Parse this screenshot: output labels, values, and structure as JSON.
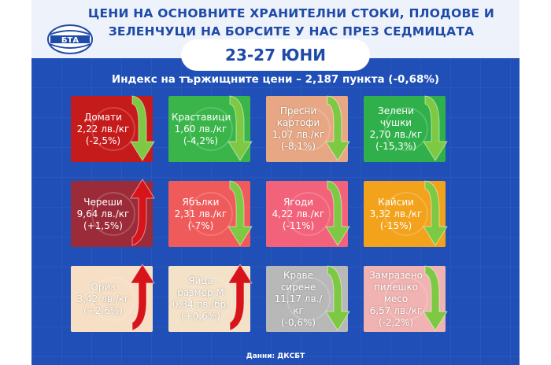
{
  "header": {
    "title_line1": "ЦЕНИ НА ОСНОВНИТЕ ХРАНИТЕЛНИ СТОКИ, ПЛОДОВЕ И",
    "title_line2": "ЗЕЛЕНЧУЦИ НА БОРСИТЕ У НАС ПРЕЗ СЕДМИЦАТА",
    "dates": "23-27 ЮНИ",
    "logo_text": "БТА"
  },
  "index_line": "Индекс на тържищните цени – 2,187 пункта (-0,68%)",
  "items": [
    {
      "name": "Домати",
      "price": "2,22 лв./кг",
      "change": "(-2,5%)",
      "trend": "down",
      "color": "#c61b1b",
      "icon": "tomato-icon"
    },
    {
      "name": "Краставици",
      "price": "1,60 лв./кг",
      "change": "(-4,2%)",
      "trend": "down",
      "color": "#39b54a",
      "icon": "cucumber-icon"
    },
    {
      "name": "Пресни картофи",
      "price": "1,07 лв./кг",
      "change": "(-8,1%)",
      "trend": "down",
      "color": "#e8a784",
      "icon": "potato-icon"
    },
    {
      "name": "Зелени чушки",
      "price": "2,70 лв./кг",
      "change": "(-15,3%)",
      "trend": "down",
      "color": "#2fb04a",
      "icon": "pepper-icon"
    },
    {
      "name": "Череши",
      "price": "9,64 лв./кг",
      "change": "(+1,5%)",
      "trend": "up",
      "color": "#9b2b38",
      "icon": "cherry-icon"
    },
    {
      "name": "Ябълки",
      "price": "2,31 лв./кг",
      "change": "(-7%)",
      "trend": "down",
      "color": "#ef5a5a",
      "icon": "apple-icon"
    },
    {
      "name": "Ягоди",
      "price": "4,22 лв./кг",
      "change": "(-11%)",
      "trend": "down",
      "color": "#f2627a",
      "icon": "strawberry-icon"
    },
    {
      "name": "Кайсии",
      "price": "3,32 лв./кг",
      "change": "(-15%)",
      "trend": "down",
      "color": "#f3a21c",
      "icon": "apricot-icon"
    },
    {
      "name": "Ориз",
      "price": "3,42 лв./кг",
      "change": "(+2,6%)",
      "trend": "up",
      "color": "#f6dfc4",
      "icon": "rice-icon"
    },
    {
      "name": "Яйца размер М",
      "price": "0,34 лв./бр.",
      "change": "(+0,6%)",
      "trend": "up",
      "color": "#f3e1c8",
      "icon": "egg-icon"
    },
    {
      "name": "Краве сирене",
      "price": "11,17 лв./кг",
      "change": "(-0,6%)",
      "trend": "down",
      "color": "#b8b8b8",
      "icon": "cheese-icon"
    },
    {
      "name": "Замразено пилешко месо",
      "price": "6,57 лв./кг",
      "change": "(-2,2%)",
      "trend": "down",
      "color": "#f1b3b1",
      "icon": "chicken-icon"
    }
  ],
  "footer": "Данни: ДКСБТ"
}
